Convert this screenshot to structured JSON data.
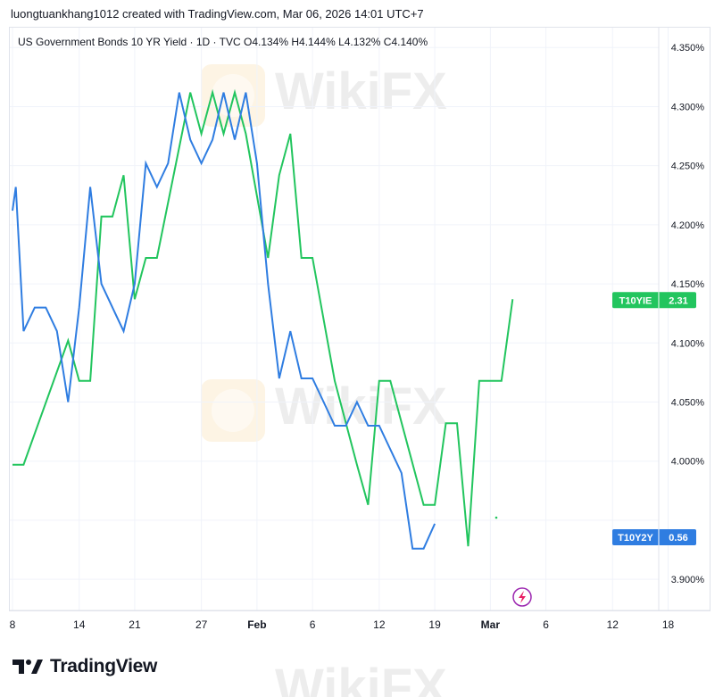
{
  "header": {
    "attribution": "luongtuankhang1012 created with TradingView.com, Mar 06, 2026 14:01 UTC+7"
  },
  "legend": {
    "text": "US Government Bonds 10 YR Yield · 1D · TVC  O4.134%  H4.144%  L4.132%  C4.140%"
  },
  "watermark": {
    "text": "WikiFX"
  },
  "footer": {
    "brand": "TradingView"
  },
  "colors": {
    "green": "#22c55e",
    "blue": "#2f7de1",
    "grid": "#f0f3fa",
    "axis_text": "#131722"
  },
  "chart_data": {
    "type": "line",
    "title": "US Government Bonds 10 YR Yield · 1D · TVC",
    "ylim": [
      3.885,
      4.36
    ],
    "y_ticks": [
      "4.350%",
      "4.300%",
      "4.250%",
      "4.200%",
      "4.150%",
      "4.100%",
      "4.050%",
      "4.000%",
      "3.900%"
    ],
    "x_ticks": [
      "8",
      "14",
      "21",
      "27",
      "Feb",
      "6",
      "12",
      "19",
      "Mar",
      "6",
      "12",
      "18"
    ],
    "x_tick_index": [
      0,
      6,
      11,
      17,
      22,
      27,
      33,
      38,
      43,
      48,
      54,
      59
    ],
    "grid": true,
    "series": [
      {
        "name": "T10YIE",
        "label_value": "2.31",
        "color": "#22c55e",
        "points": [
          [
            0,
            3.997
          ],
          [
            1,
            3.997
          ],
          [
            5,
            4.102
          ],
          [
            6,
            4.068
          ],
          [
            7,
            4.068
          ],
          [
            8,
            4.207
          ],
          [
            9,
            4.207
          ],
          [
            10,
            4.242
          ],
          [
            11,
            4.137
          ],
          [
            12,
            4.172
          ],
          [
            13,
            4.172
          ],
          [
            16,
            4.312
          ],
          [
            17,
            4.277
          ],
          [
            18,
            4.312
          ],
          [
            19,
            4.277
          ],
          [
            20,
            4.312
          ],
          [
            21,
            4.277
          ],
          [
            23,
            4.172
          ],
          [
            24,
            4.242
          ],
          [
            25,
            4.277
          ],
          [
            26,
            4.172
          ],
          [
            27,
            4.172
          ],
          [
            29,
            4.068
          ],
          [
            31,
            3.997
          ],
          [
            32,
            3.963
          ],
          [
            33,
            4.068
          ],
          [
            34,
            4.068
          ],
          [
            37,
            3.963
          ],
          [
            38,
            3.963
          ],
          [
            39,
            4.032
          ],
          [
            40,
            4.032
          ],
          [
            41,
            3.928
          ],
          [
            42,
            4.068
          ],
          [
            43,
            4.068
          ],
          [
            44,
            4.068
          ],
          [
            45,
            4.137
          ]
        ]
      },
      {
        "name": "T10Y2Y",
        "label_value": "0.56",
        "color": "#2f7de1",
        "points": [
          [
            0,
            4.212
          ],
          [
            0.3,
            4.232
          ],
          [
            1,
            4.11
          ],
          [
            2,
            4.13
          ],
          [
            3,
            4.13
          ],
          [
            4,
            4.11
          ],
          [
            5,
            4.05
          ],
          [
            6,
            4.13
          ],
          [
            7,
            4.232
          ],
          [
            8,
            4.15
          ],
          [
            9,
            4.13
          ],
          [
            10,
            4.11
          ],
          [
            11,
            4.15
          ],
          [
            12,
            4.252
          ],
          [
            13,
            4.232
          ],
          [
            14,
            4.252
          ],
          [
            15,
            4.312
          ],
          [
            16,
            4.272
          ],
          [
            17,
            4.252
          ],
          [
            18,
            4.272
          ],
          [
            19,
            4.312
          ],
          [
            20,
            4.272
          ],
          [
            21,
            4.312
          ],
          [
            22,
            4.252
          ],
          [
            23,
            4.15
          ],
          [
            24,
            4.07
          ],
          [
            25,
            4.11
          ],
          [
            26,
            4.07
          ],
          [
            27,
            4.07
          ],
          [
            28,
            4.05
          ],
          [
            29,
            4.03
          ],
          [
            30,
            4.03
          ],
          [
            31,
            4.05
          ],
          [
            32,
            4.03
          ],
          [
            33,
            4.03
          ],
          [
            34,
            4.01
          ],
          [
            35,
            3.99
          ],
          [
            36,
            3.926
          ],
          [
            37,
            3.926
          ],
          [
            38,
            3.947
          ]
        ]
      }
    ]
  }
}
